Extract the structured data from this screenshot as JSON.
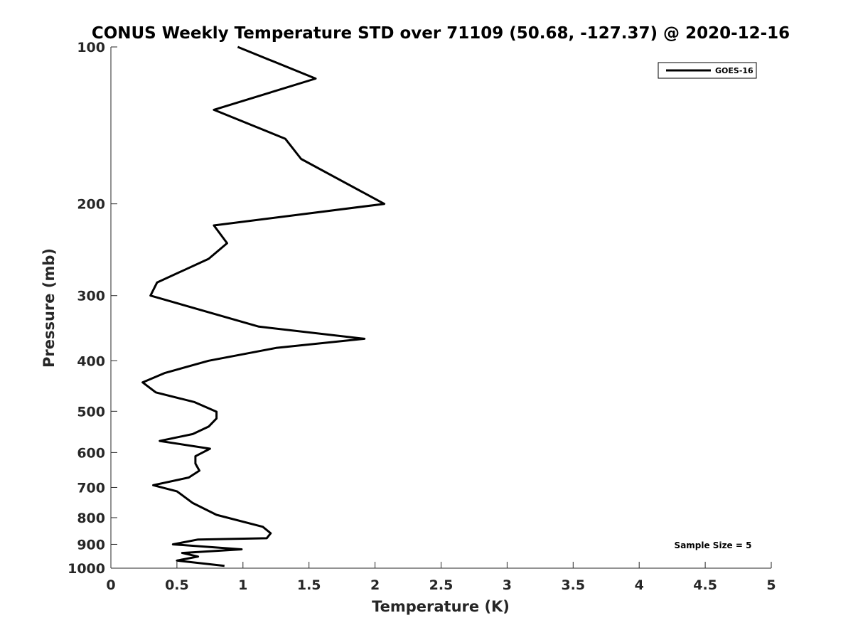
{
  "chart_data": {
    "type": "line",
    "title": "CONUS Weekly Temperature STD over 71109 (50.68, -127.37) @ 2020-12-16",
    "xlabel": "Temperature (K)",
    "ylabel": "Pressure (mb)",
    "xlim": [
      0,
      5
    ],
    "ylim": [
      100,
      1000
    ],
    "y_scale": "log",
    "y_reversed": true,
    "x_ticks": [
      "0",
      "0.5",
      "1",
      "1.5",
      "2",
      "2.5",
      "3",
      "3.5",
      "4",
      "4.5",
      "5"
    ],
    "x_tick_values": [
      0,
      0.5,
      1,
      1.5,
      2,
      2.5,
      3,
      3.5,
      4,
      4.5,
      5
    ],
    "y_ticks": [
      "100",
      "200",
      "300",
      "400",
      "500",
      "600",
      "700",
      "800",
      "900",
      "1000"
    ],
    "y_tick_values": [
      100,
      200,
      300,
      400,
      500,
      600,
      700,
      800,
      900,
      1000
    ],
    "grid": false,
    "legend": {
      "position": "top-right",
      "entries": [
        "GOES-16"
      ]
    },
    "annotations": [
      {
        "text": "Sample Size = 5",
        "position": "bottom-right"
      }
    ],
    "series": [
      {
        "name": "GOES-16",
        "color": "#000000",
        "x": [
          0.96,
          1.55,
          0.78,
          1.32,
          1.44,
          2.07,
          0.78,
          0.88,
          0.74,
          0.35,
          0.3,
          1.12,
          1.92,
          1.25,
          0.74,
          0.41,
          0.24,
          0.34,
          0.63,
          0.8,
          0.8,
          0.74,
          0.62,
          0.37,
          0.75,
          0.64,
          0.64,
          0.67,
          0.59,
          0.32,
          0.5,
          0.62,
          0.8,
          1.15,
          1.21,
          1.18,
          0.66,
          0.47,
          0.99,
          0.54,
          0.66,
          0.5,
          0.86
        ],
        "y": [
          100,
          115,
          132,
          150,
          164,
          200,
          220,
          238,
          255,
          283,
          300,
          344,
          363,
          378,
          400,
          422,
          440,
          460,
          480,
          501,
          516,
          535,
          553,
          570,
          590,
          610,
          630,
          650,
          670,
          693,
          712,
          750,
          790,
          833,
          857,
          876,
          881,
          900,
          920,
          935,
          950,
          967,
          990
        ]
      }
    ]
  }
}
